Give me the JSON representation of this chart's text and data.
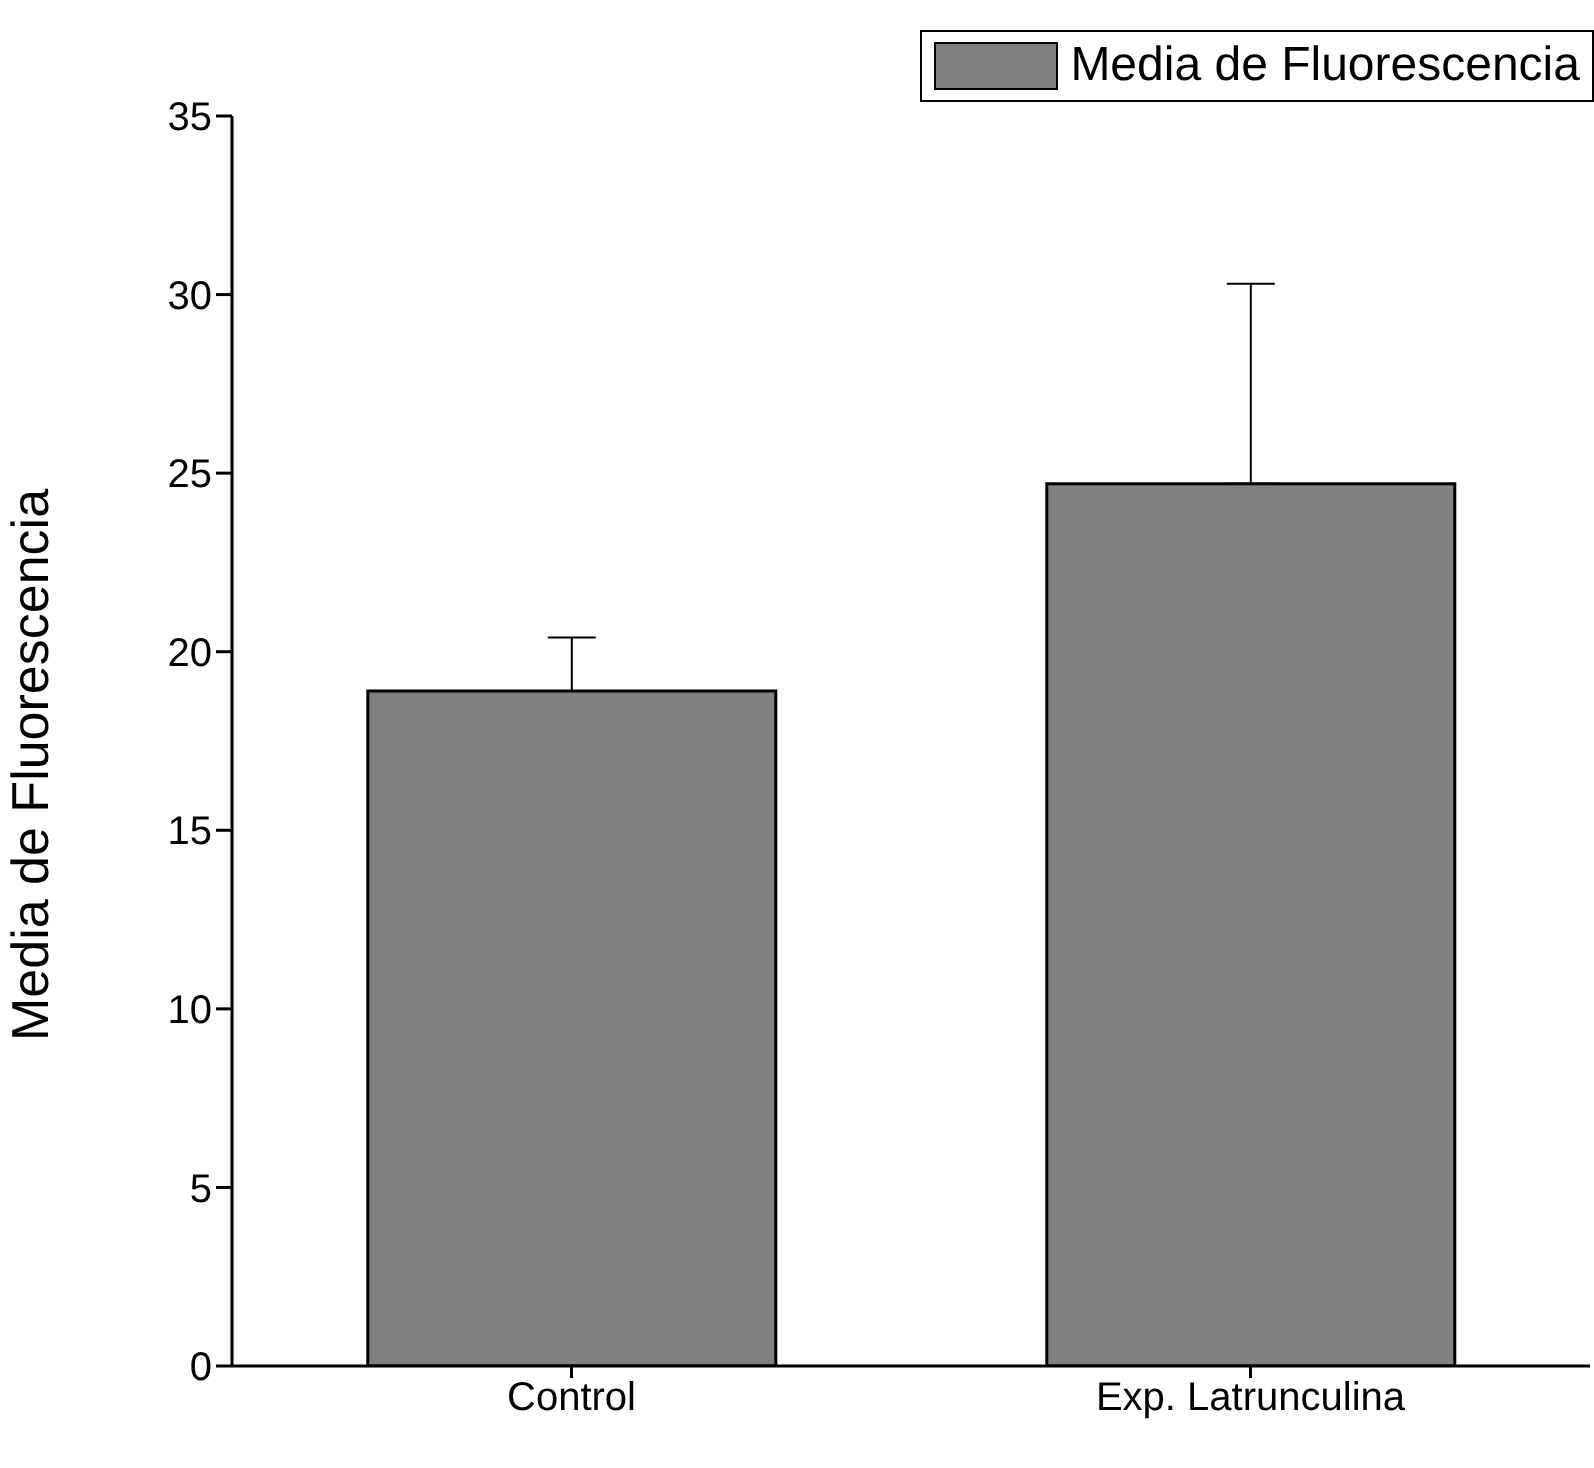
{
  "chart_data": {
    "type": "bar",
    "ylabel": "Media de Fluorescencia",
    "categories": [
      "Control",
      "Exp. Latrunculina"
    ],
    "series": [
      {
        "name": "Media de Fluorescencia",
        "color": "#808080",
        "values": [
          18.9,
          24.7
        ],
        "errors": [
          [
            18.9,
            20.4
          ],
          [
            24.7,
            30.3
          ]
        ]
      }
    ],
    "ylim": [
      0,
      35
    ],
    "yticks": [
      0,
      5,
      10,
      15,
      20,
      25,
      30,
      35
    ],
    "grid": false,
    "legend": "top right"
  }
}
